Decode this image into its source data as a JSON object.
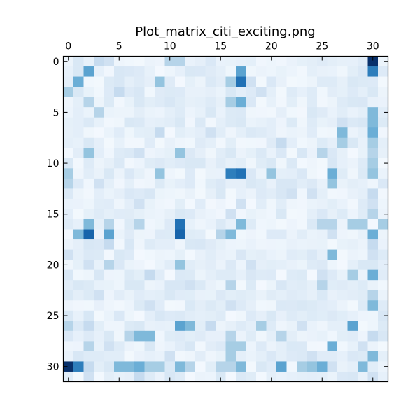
{
  "chart_data": {
    "type": "heatmap",
    "title": "Plot_matrix_citi_exciting.png",
    "colormap": "Blues",
    "value_range": [
      0,
      1
    ],
    "grid": false,
    "x_ticks": [
      0,
      5,
      10,
      15,
      20,
      25,
      30
    ],
    "y_ticks": [
      0,
      5,
      10,
      15,
      20,
      25,
      30
    ],
    "xlim": [
      -0.5,
      31.5
    ],
    "ylim": [
      -0.5,
      31.5
    ],
    "x_axis_position": "top",
    "rows": 32,
    "cols": 32,
    "cells": [
      {
        "r": 0,
        "c": 30,
        "v": 1.0
      },
      {
        "r": 0,
        "c": 10,
        "v": 0.3
      },
      {
        "r": 0,
        "c": 11,
        "v": 0.3
      },
      {
        "r": 0,
        "c": 3,
        "v": 0.25
      },
      {
        "r": 0,
        "c": 4,
        "v": 0.2
      },
      {
        "r": 1,
        "c": 2,
        "v": 0.55
      },
      {
        "r": 1,
        "c": 17,
        "v": 0.55
      },
      {
        "r": 1,
        "c": 30,
        "v": 0.7
      },
      {
        "r": 1,
        "c": 1,
        "v": 0.15
      },
      {
        "r": 1,
        "c": 12,
        "v": 0.15
      },
      {
        "r": 2,
        "c": 1,
        "v": 0.5
      },
      {
        "r": 2,
        "c": 9,
        "v": 0.4
      },
      {
        "r": 2,
        "c": 16,
        "v": 0.35
      },
      {
        "r": 2,
        "c": 17,
        "v": 0.75
      },
      {
        "r": 2,
        "c": 18,
        "v": 0.2
      },
      {
        "r": 3,
        "c": 0,
        "v": 0.35
      },
      {
        "r": 3,
        "c": 5,
        "v": 0.25
      },
      {
        "r": 3,
        "c": 19,
        "v": 0.2
      },
      {
        "r": 3,
        "c": 16,
        "v": 0.15
      },
      {
        "r": 3,
        "c": 30,
        "v": 0.15
      },
      {
        "r": 4,
        "c": 2,
        "v": 0.3
      },
      {
        "r": 4,
        "c": 16,
        "v": 0.35
      },
      {
        "r": 4,
        "c": 17,
        "v": 0.5
      },
      {
        "r": 4,
        "c": 28,
        "v": 0.15
      },
      {
        "r": 5,
        "c": 3,
        "v": 0.3
      },
      {
        "r": 5,
        "c": 30,
        "v": 0.45
      },
      {
        "r": 5,
        "c": 14,
        "v": 0.15
      },
      {
        "r": 6,
        "c": 30,
        "v": 0.45
      },
      {
        "r": 6,
        "c": 11,
        "v": 0.15
      },
      {
        "r": 6,
        "c": 27,
        "v": 0.2
      },
      {
        "r": 7,
        "c": 27,
        "v": 0.45
      },
      {
        "r": 7,
        "c": 30,
        "v": 0.5
      },
      {
        "r": 7,
        "c": 9,
        "v": 0.25
      },
      {
        "r": 7,
        "c": 14,
        "v": 0.2
      },
      {
        "r": 8,
        "c": 27,
        "v": 0.35
      },
      {
        "r": 8,
        "c": 21,
        "v": 0.25
      },
      {
        "r": 8,
        "c": 30,
        "v": 0.35
      },
      {
        "r": 9,
        "c": 2,
        "v": 0.4
      },
      {
        "r": 9,
        "c": 11,
        "v": 0.4
      },
      {
        "r": 9,
        "c": 7,
        "v": 0.2
      },
      {
        "r": 9,
        "c": 25,
        "v": 0.3
      },
      {
        "r": 9,
        "c": 30,
        "v": 0.3
      },
      {
        "r": 10,
        "c": 30,
        "v": 0.35
      },
      {
        "r": 10,
        "c": 0,
        "v": 0.15
      },
      {
        "r": 10,
        "c": 20,
        "v": 0.15
      },
      {
        "r": 11,
        "c": 0,
        "v": 0.35
      },
      {
        "r": 11,
        "c": 9,
        "v": 0.4
      },
      {
        "r": 11,
        "c": 16,
        "v": 0.7
      },
      {
        "r": 11,
        "c": 17,
        "v": 0.75
      },
      {
        "r": 11,
        "c": 20,
        "v": 0.4
      },
      {
        "r": 11,
        "c": 26,
        "v": 0.5
      },
      {
        "r": 11,
        "c": 30,
        "v": 0.4
      },
      {
        "r": 12,
        "c": 0,
        "v": 0.3
      },
      {
        "r": 12,
        "c": 26,
        "v": 0.4
      },
      {
        "r": 12,
        "c": 3,
        "v": 0.2
      },
      {
        "r": 12,
        "c": 18,
        "v": 0.15
      },
      {
        "r": 13,
        "c": 22,
        "v": 0.2
      },
      {
        "r": 13,
        "c": 24,
        "v": 0.2
      },
      {
        "r": 13,
        "c": 30,
        "v": 0.25
      },
      {
        "r": 14,
        "c": 17,
        "v": 0.2
      },
      {
        "r": 14,
        "c": 7,
        "v": 0.2
      },
      {
        "r": 14,
        "c": 30,
        "v": 0.2
      },
      {
        "r": 15,
        "c": 30,
        "v": 0.3
      },
      {
        "r": 15,
        "c": 11,
        "v": 0.15
      },
      {
        "r": 15,
        "c": 16,
        "v": 0.2
      },
      {
        "r": 16,
        "c": 2,
        "v": 0.45
      },
      {
        "r": 16,
        "c": 4,
        "v": 0.3
      },
      {
        "r": 16,
        "c": 7,
        "v": 0.3
      },
      {
        "r": 16,
        "c": 11,
        "v": 0.75
      },
      {
        "r": 16,
        "c": 17,
        "v": 0.45
      },
      {
        "r": 16,
        "c": 25,
        "v": 0.3
      },
      {
        "r": 16,
        "c": 26,
        "v": 0.3
      },
      {
        "r": 16,
        "c": 28,
        "v": 0.35
      },
      {
        "r": 16,
        "c": 29,
        "v": 0.35
      },
      {
        "r": 16,
        "c": 31,
        "v": 0.35
      },
      {
        "r": 17,
        "c": 1,
        "v": 0.45
      },
      {
        "r": 17,
        "c": 2,
        "v": 0.8
      },
      {
        "r": 17,
        "c": 4,
        "v": 0.55
      },
      {
        "r": 17,
        "c": 11,
        "v": 0.8
      },
      {
        "r": 17,
        "c": 15,
        "v": 0.3
      },
      {
        "r": 17,
        "c": 16,
        "v": 0.45
      },
      {
        "r": 17,
        "c": 30,
        "v": 0.5
      },
      {
        "r": 17,
        "c": 26,
        "v": 0.2
      },
      {
        "r": 18,
        "c": 4,
        "v": 0.25
      },
      {
        "r": 18,
        "c": 12,
        "v": 0.15
      },
      {
        "r": 18,
        "c": 30,
        "v": 0.25
      },
      {
        "r": 19,
        "c": 26,
        "v": 0.45
      },
      {
        "r": 19,
        "c": 0,
        "v": 0.2
      },
      {
        "r": 19,
        "c": 5,
        "v": 0.15
      },
      {
        "r": 19,
        "c": 30,
        "v": 0.2
      },
      {
        "r": 20,
        "c": 4,
        "v": 0.3
      },
      {
        "r": 20,
        "c": 11,
        "v": 0.4
      },
      {
        "r": 20,
        "c": 2,
        "v": 0.2
      },
      {
        "r": 20,
        "c": 18,
        "v": 0.2
      },
      {
        "r": 21,
        "c": 30,
        "v": 0.5
      },
      {
        "r": 21,
        "c": 8,
        "v": 0.25
      },
      {
        "r": 21,
        "c": 28,
        "v": 0.35
      },
      {
        "r": 21,
        "c": 25,
        "v": 0.2
      },
      {
        "r": 22,
        "c": 16,
        "v": 0.3
      },
      {
        "r": 22,
        "c": 25,
        "v": 0.3
      },
      {
        "r": 22,
        "c": 1,
        "v": 0.15
      },
      {
        "r": 22,
        "c": 12,
        "v": 0.2
      },
      {
        "r": 23,
        "c": 3,
        "v": 0.2
      },
      {
        "r": 23,
        "c": 10,
        "v": 0.15
      },
      {
        "r": 23,
        "c": 30,
        "v": 0.3
      },
      {
        "r": 24,
        "c": 30,
        "v": 0.45
      },
      {
        "r": 24,
        "c": 16,
        "v": 0.2
      },
      {
        "r": 24,
        "c": 8,
        "v": 0.2
      },
      {
        "r": 25,
        "c": 0,
        "v": 0.15
      },
      {
        "r": 25,
        "c": 20,
        "v": 0.15
      },
      {
        "r": 26,
        "c": 0,
        "v": 0.3
      },
      {
        "r": 26,
        "c": 11,
        "v": 0.55
      },
      {
        "r": 26,
        "c": 12,
        "v": 0.45
      },
      {
        "r": 26,
        "c": 14,
        "v": 0.25
      },
      {
        "r": 26,
        "c": 19,
        "v": 0.35
      },
      {
        "r": 26,
        "c": 28,
        "v": 0.55
      },
      {
        "r": 26,
        "c": 2,
        "v": 0.25
      },
      {
        "r": 26,
        "c": 23,
        "v": 0.2
      },
      {
        "r": 27,
        "c": 7,
        "v": 0.45
      },
      {
        "r": 27,
        "c": 8,
        "v": 0.45
      },
      {
        "r": 27,
        "c": 6,
        "v": 0.3
      },
      {
        "r": 27,
        "c": 16,
        "v": 0.3
      },
      {
        "r": 27,
        "c": 21,
        "v": 0.3
      },
      {
        "r": 27,
        "c": 30,
        "v": 0.25
      },
      {
        "r": 28,
        "c": 2,
        "v": 0.3
      },
      {
        "r": 28,
        "c": 16,
        "v": 0.35
      },
      {
        "r": 28,
        "c": 17,
        "v": 0.35
      },
      {
        "r": 28,
        "c": 26,
        "v": 0.5
      },
      {
        "r": 28,
        "c": 29,
        "v": 0.2
      },
      {
        "r": 28,
        "c": 4,
        "v": 0.2
      },
      {
        "r": 29,
        "c": 16,
        "v": 0.35
      },
      {
        "r": 29,
        "c": 30,
        "v": 0.45
      },
      {
        "r": 29,
        "c": 10,
        "v": 0.2
      },
      {
        "r": 29,
        "c": 24,
        "v": 0.2
      },
      {
        "r": 30,
        "c": 0,
        "v": 1.0
      },
      {
        "r": 30,
        "c": 1,
        "v": 0.7
      },
      {
        "r": 30,
        "c": 5,
        "v": 0.45
      },
      {
        "r": 30,
        "c": 6,
        "v": 0.45
      },
      {
        "r": 30,
        "c": 7,
        "v": 0.5
      },
      {
        "r": 30,
        "c": 8,
        "v": 0.35
      },
      {
        "r": 30,
        "c": 9,
        "v": 0.35
      },
      {
        "r": 30,
        "c": 11,
        "v": 0.45
      },
      {
        "r": 30,
        "c": 12,
        "v": 0.3
      },
      {
        "r": 30,
        "c": 15,
        "v": 0.3
      },
      {
        "r": 30,
        "c": 16,
        "v": 0.3
      },
      {
        "r": 30,
        "c": 17,
        "v": 0.45
      },
      {
        "r": 30,
        "c": 21,
        "v": 0.55
      },
      {
        "r": 30,
        "c": 23,
        "v": 0.35
      },
      {
        "r": 30,
        "c": 24,
        "v": 0.4
      },
      {
        "r": 30,
        "c": 25,
        "v": 0.5
      },
      {
        "r": 30,
        "c": 29,
        "v": 0.45
      },
      {
        "r": 30,
        "c": 2,
        "v": 0.25
      },
      {
        "r": 30,
        "c": 26,
        "v": 0.2
      },
      {
        "r": 31,
        "c": 2,
        "v": 0.2
      },
      {
        "r": 31,
        "c": 7,
        "v": 0.25
      },
      {
        "r": 31,
        "c": 15,
        "v": 0.15
      },
      {
        "r": 31,
        "c": 30,
        "v": 0.2
      }
    ]
  }
}
